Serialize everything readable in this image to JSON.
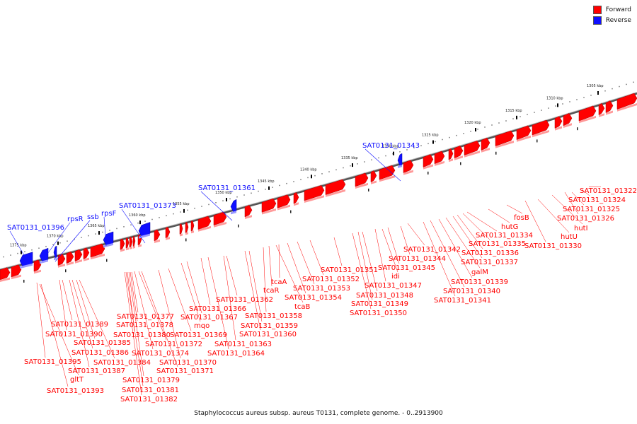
{
  "legend": {
    "forward_label": "Forward",
    "reverse_label": "Reverse",
    "forward_color": "#ff0000",
    "reverse_color": "#1010ff"
  },
  "caption": "Staphylococcus aureus subsp. aureus T0131, complete genome. - 0..2913900",
  "ticks": [
    "1375 kbp",
    "1370 kbp",
    "1365 kbp",
    "1360 kbp",
    "1355 kbp",
    "1350 kbp",
    "1345 kbp",
    "1340 kbp",
    "1335 kbp",
    "1330 kbp",
    "1325 kbp",
    "1320 kbp",
    "1315 kbp",
    "1310 kbp",
    "1305 kbp"
  ],
  "reverse_labels": [
    "SAT0131_01396",
    "rpsR",
    "ssb",
    "rpsF",
    "SAT0131_01373",
    "SAT0131_01361",
    "SAT0131_01343"
  ],
  "forward_labels": [
    "SAT0131_01395",
    "gltT",
    "SAT0131_01393",
    "SAT0131_01390",
    "SAT0131_01389",
    "SAT0131_01387",
    "SAT0131_01386",
    "SAT0131_01385",
    "SAT0131_01384",
    "SAT0131_01382",
    "SAT0131_01381",
    "SAT0131_01380",
    "SAT0131_01379",
    "SAT0131_01378",
    "SAT0131_01377",
    "SAT0131_01374",
    "SAT0131_01372",
    "SAT0131_01371",
    "SAT0131_01370",
    "SAT0131_01369",
    "mqo",
    "SAT0131_01367",
    "SAT0131_01366",
    "SAT0131_01364",
    "SAT0131_01363",
    "SAT0131_01362",
    "SAT0131_01360",
    "SAT0131_01359",
    "SAT0131_01358",
    "tcaB",
    "tcaR",
    "tcaA",
    "SAT0131_01354",
    "SAT0131_01353",
    "SAT0131_01352",
    "SAT0131_01351",
    "SAT0131_01350",
    "SAT0131_01349",
    "SAT0131_01348",
    "SAT0131_01347",
    "idi",
    "SAT0131_01345",
    "SAT0131_01344",
    "SAT0131_01342",
    "SAT0131_01341",
    "SAT0131_01340",
    "SAT0131_01339",
    "galM",
    "SAT0131_01337",
    "SAT0131_01336",
    "SAT0131_01335",
    "SAT0131_01334",
    "hutG",
    "fosB",
    "SAT0131_01330",
    "hutU",
    "hutI",
    "SAT0131_01326",
    "SAT0131_01325",
    "SAT0131_01324",
    "SAT0131_01322"
  ]
}
